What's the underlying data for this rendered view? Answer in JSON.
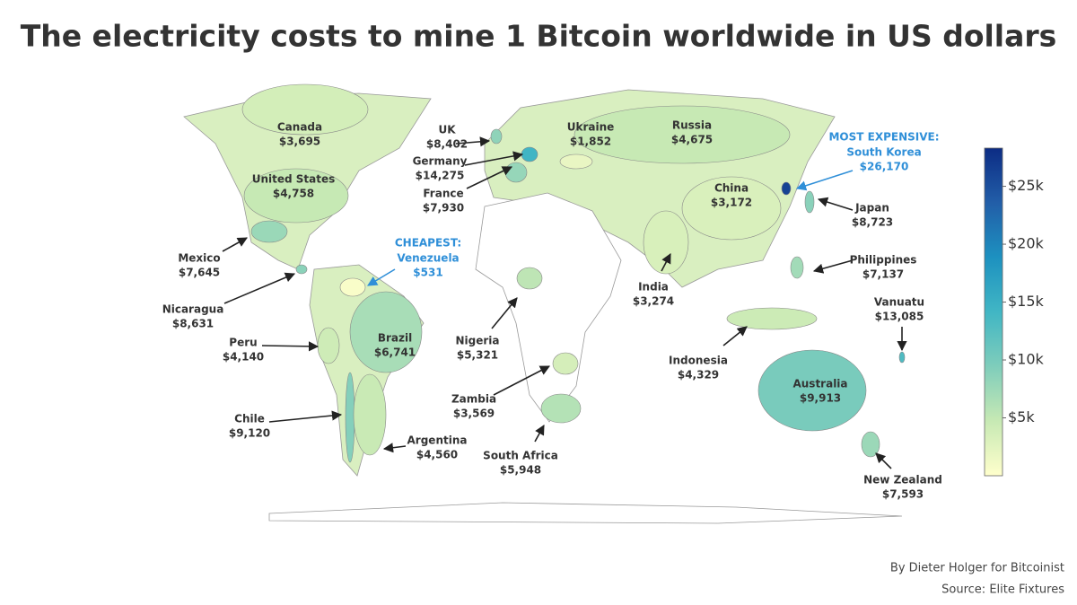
{
  "chart_data": {
    "type": "choropleth",
    "title": "The electricity costs to mine 1 Bitcoin worldwide in US dollars",
    "colorscale": [
      "#ffffcc",
      "#c7e9b4",
      "#7fcdbb",
      "#41b6c4",
      "#1d91c0",
      "#225ea8",
      "#0c2c84"
    ],
    "clim": [
      0,
      28300
    ],
    "cticks": [
      {
        "value": 5000,
        "label": "$5k"
      },
      {
        "value": 10000,
        "label": "$10k"
      },
      {
        "value": 15000,
        "label": "$15k"
      },
      {
        "value": 20000,
        "label": "$20k"
      },
      {
        "value": 25000,
        "label": "$25k"
      }
    ],
    "regions": [
      {
        "name": "Canada",
        "value": 3695,
        "value_label": "$3,695"
      },
      {
        "name": "United States",
        "value": 4758,
        "value_label": "$4,758"
      },
      {
        "name": "Mexico",
        "value": 7645,
        "value_label": "$7,645"
      },
      {
        "name": "Nicaragua",
        "value": 8631,
        "value_label": "$8,631"
      },
      {
        "name": "Peru",
        "value": 4140,
        "value_label": "$4,140"
      },
      {
        "name": "Brazil",
        "value": 6741,
        "value_label": "$6,741"
      },
      {
        "name": "Chile",
        "value": 9120,
        "value_label": "$9,120"
      },
      {
        "name": "Argentina",
        "value": 4560,
        "value_label": "$4,560"
      },
      {
        "name": "Venezuela",
        "value": 531,
        "value_label": "$531",
        "note": "CHEAPEST:"
      },
      {
        "name": "UK",
        "value": 8402,
        "value_label": "$8,402"
      },
      {
        "name": "Germany",
        "value": 14275,
        "value_label": "$14,275"
      },
      {
        "name": "France",
        "value": 7930,
        "value_label": "$7,930"
      },
      {
        "name": "Ukraine",
        "value": 1852,
        "value_label": "$1,852"
      },
      {
        "name": "Russia",
        "value": 4675,
        "value_label": "$4,675"
      },
      {
        "name": "China",
        "value": 3172,
        "value_label": "$3,172"
      },
      {
        "name": "South Korea",
        "value": 26170,
        "value_label": "$26,170",
        "note": "MOST EXPENSIVE:"
      },
      {
        "name": "Japan",
        "value": 8723,
        "value_label": "$8,723"
      },
      {
        "name": "Philippines",
        "value": 7137,
        "value_label": "$7,137"
      },
      {
        "name": "India",
        "value": 3274,
        "value_label": "$3,274"
      },
      {
        "name": "Vanuatu",
        "value": 13085,
        "value_label": "$13,085"
      },
      {
        "name": "Indonesia",
        "value": 4329,
        "value_label": "$4,329"
      },
      {
        "name": "Australia",
        "value": 9913,
        "value_label": "$9,913"
      },
      {
        "name": "New Zealand",
        "value": 7593,
        "value_label": "$7,593"
      },
      {
        "name": "Nigeria",
        "value": 5321,
        "value_label": "$5,321"
      },
      {
        "name": "Zambia",
        "value": 3569,
        "value_label": "$3,569"
      },
      {
        "name": "South Africa",
        "value": 5948,
        "value_label": "$5,948"
      }
    ],
    "credits": [
      "By Dieter Holger for Bitcoinist",
      "Source: Elite Fixtures"
    ]
  }
}
